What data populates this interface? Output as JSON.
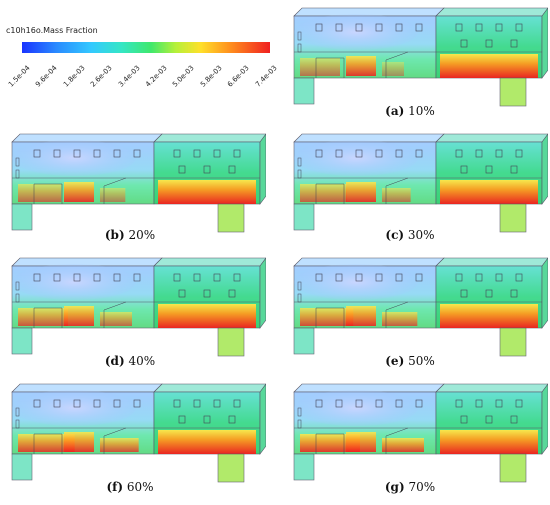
{
  "legend": {
    "title": "c10h16o.Mass Fraction",
    "ticks": [
      "1.5e-04",
      "9.6e-04",
      "1.8e-03",
      "2.6e-03",
      "3.4e-03",
      "4.2e-03",
      "5.0e-03",
      "5.8e-03",
      "6.6e-03",
      "7.4e-03"
    ]
  },
  "panels": [
    {
      "letter": "(a)",
      "label": "10%"
    },
    {
      "letter": "(b)",
      "label": "20%"
    },
    {
      "letter": "(c)",
      "label": "30%"
    },
    {
      "letter": "(d)",
      "label": "40%"
    },
    {
      "letter": "(e)",
      "label": "50%"
    },
    {
      "letter": "(f)",
      "label": "60%"
    },
    {
      "letter": "(g)",
      "label": "70%"
    }
  ]
}
